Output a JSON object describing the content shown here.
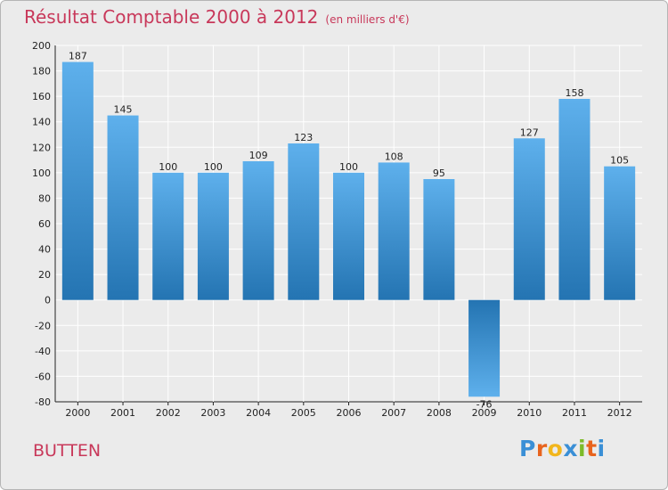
{
  "chart_data": {
    "type": "bar",
    "title": "Résultat Comptable 2000 à 2012",
    "subtitle": "(en milliers d'€)",
    "categories": [
      "2000",
      "2001",
      "2002",
      "2003",
      "2004",
      "2005",
      "2006",
      "2007",
      "2008",
      "2009",
      "2010",
      "2011",
      "2012"
    ],
    "values": [
      187,
      145,
      100,
      100,
      109,
      123,
      100,
      108,
      95,
      -76,
      127,
      158,
      105
    ],
    "ylim": [
      -80,
      200
    ],
    "yticks": [
      200,
      180,
      160,
      140,
      120,
      100,
      80,
      60,
      40,
      20,
      0,
      -20,
      -40,
      -60,
      -80
    ],
    "grid": true,
    "xlabel": "",
    "ylabel": "",
    "colors": {
      "bar_light": "#5eb0ec",
      "bar_dark": "#2474b2",
      "grid": "#ffffff",
      "text": "#c8385a"
    }
  },
  "location": "BUTTEN",
  "brand": {
    "letters": [
      "P",
      "r",
      "o",
      "x",
      "i",
      "t",
      "i"
    ],
    "colors": [
      "#3a8fd6",
      "#e8641e",
      "#f2b61c",
      "#3a8fd6",
      "#7dbb2a",
      "#e8641e",
      "#3a8fd6"
    ]
  }
}
